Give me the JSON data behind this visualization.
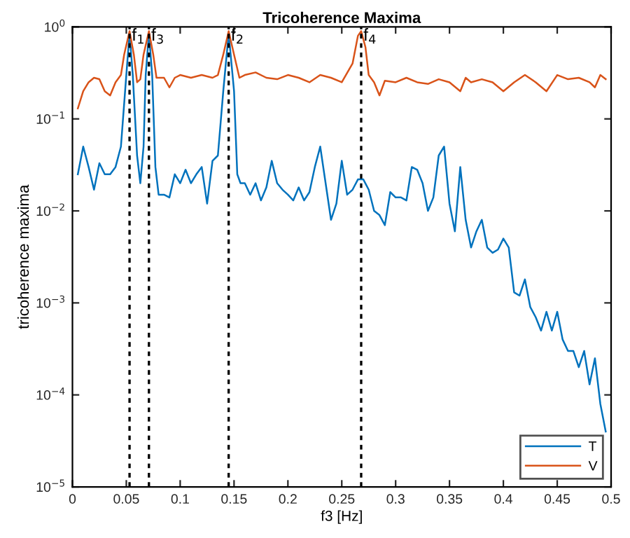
{
  "chart_data": {
    "type": "line",
    "title": "Tricoherence Maxima",
    "xlabel": "f3 [Hz]",
    "ylabel": "tricoherence maxima",
    "log": "y",
    "xlim": [
      0,
      0.5
    ],
    "xticks": [
      0,
      0.05,
      0.1,
      0.15,
      0.2,
      0.25,
      0.3,
      0.35,
      0.4,
      0.45,
      0.5
    ],
    "ylim": [
      1e-05,
      1
    ],
    "yticks": [
      {
        "value": 1e-05,
        "label": "10$^{−5}$"
      },
      {
        "value": 0.0001,
        "label": "10$^{−4}$"
      },
      {
        "value": 0.001,
        "label": "10$^{−3}$"
      },
      {
        "value": 0.01,
        "label": "10$^{−2}$"
      },
      {
        "value": 0.1,
        "label": "10$^{−1}$"
      },
      {
        "value": 1,
        "label": "10$^{0}$"
      }
    ],
    "grid": false,
    "legend": "bottom right",
    "line_style": "solid",
    "marker": "none",
    "series": [
      {
        "name": "T",
        "color": "#0072bd",
        "x": [
          0.005,
          0.01,
          0.015,
          0.02,
          0.025,
          0.03,
          0.035,
          0.04,
          0.045,
          0.05,
          0.053,
          0.056,
          0.06,
          0.063,
          0.066,
          0.068,
          0.071,
          0.074,
          0.077,
          0.08,
          0.085,
          0.09,
          0.095,
          0.1,
          0.105,
          0.11,
          0.115,
          0.12,
          0.125,
          0.13,
          0.135,
          0.14,
          0.145,
          0.15,
          0.153,
          0.156,
          0.16,
          0.165,
          0.17,
          0.175,
          0.18,
          0.185,
          0.19,
          0.195,
          0.2,
          0.205,
          0.21,
          0.215,
          0.22,
          0.225,
          0.23,
          0.235,
          0.24,
          0.245,
          0.25,
          0.255,
          0.26,
          0.265,
          0.27,
          0.275,
          0.28,
          0.285,
          0.29,
          0.295,
          0.3,
          0.305,
          0.31,
          0.315,
          0.32,
          0.325,
          0.33,
          0.335,
          0.34,
          0.345,
          0.35,
          0.355,
          0.36,
          0.365,
          0.37,
          0.375,
          0.38,
          0.385,
          0.39,
          0.395,
          0.4,
          0.405,
          0.41,
          0.415,
          0.42,
          0.425,
          0.43,
          0.435,
          0.44,
          0.445,
          0.45,
          0.455,
          0.46,
          0.465,
          0.47,
          0.475,
          0.48,
          0.485,
          0.49,
          0.495
        ],
        "values": [
          0.025,
          0.05,
          0.03,
          0.017,
          0.033,
          0.025,
          0.025,
          0.03,
          0.05,
          0.3,
          0.85,
          0.3,
          0.04,
          0.02,
          0.05,
          0.3,
          0.85,
          0.3,
          0.03,
          0.015,
          0.015,
          0.014,
          0.025,
          0.02,
          0.028,
          0.02,
          0.025,
          0.03,
          0.012,
          0.035,
          0.04,
          0.2,
          0.85,
          0.2,
          0.025,
          0.02,
          0.02,
          0.015,
          0.02,
          0.013,
          0.018,
          0.035,
          0.02,
          0.017,
          0.015,
          0.013,
          0.018,
          0.013,
          0.016,
          0.03,
          0.05,
          0.02,
          0.008,
          0.012,
          0.035,
          0.015,
          0.017,
          0.022,
          0.022,
          0.017,
          0.01,
          0.009,
          0.007,
          0.016,
          0.014,
          0.014,
          0.013,
          0.03,
          0.028,
          0.02,
          0.01,
          0.014,
          0.04,
          0.05,
          0.012,
          0.006,
          0.03,
          0.008,
          0.004,
          0.006,
          0.008,
          0.004,
          0.0035,
          0.0038,
          0.005,
          0.004,
          0.0013,
          0.0012,
          0.0018,
          0.0009,
          0.0007,
          0.0005,
          0.0008,
          0.0005,
          0.0008,
          0.0004,
          0.0003,
          0.0003,
          0.0002,
          0.0003,
          0.00013,
          0.00025,
          8e-05,
          4e-05
        ]
      },
      {
        "name": "V",
        "color": "#d95319",
        "x": [
          0.005,
          0.01,
          0.015,
          0.02,
          0.025,
          0.03,
          0.035,
          0.04,
          0.045,
          0.048,
          0.053,
          0.057,
          0.06,
          0.063,
          0.066,
          0.071,
          0.075,
          0.078,
          0.085,
          0.09,
          0.095,
          0.1,
          0.11,
          0.12,
          0.13,
          0.135,
          0.14,
          0.145,
          0.15,
          0.155,
          0.16,
          0.17,
          0.18,
          0.19,
          0.2,
          0.21,
          0.22,
          0.23,
          0.24,
          0.25,
          0.26,
          0.265,
          0.268,
          0.272,
          0.275,
          0.28,
          0.285,
          0.29,
          0.3,
          0.31,
          0.32,
          0.33,
          0.34,
          0.35,
          0.36,
          0.365,
          0.37,
          0.38,
          0.39,
          0.4,
          0.41,
          0.42,
          0.43,
          0.44,
          0.45,
          0.46,
          0.47,
          0.48,
          0.485,
          0.49,
          0.495
        ],
        "values": [
          0.13,
          0.2,
          0.25,
          0.28,
          0.27,
          0.2,
          0.18,
          0.25,
          0.3,
          0.5,
          0.9,
          0.5,
          0.25,
          0.27,
          0.5,
          0.9,
          0.5,
          0.28,
          0.28,
          0.22,
          0.28,
          0.3,
          0.28,
          0.3,
          0.28,
          0.3,
          0.5,
          0.9,
          0.5,
          0.28,
          0.3,
          0.32,
          0.28,
          0.27,
          0.3,
          0.28,
          0.25,
          0.3,
          0.28,
          0.25,
          0.4,
          0.8,
          0.9,
          0.6,
          0.3,
          0.25,
          0.18,
          0.26,
          0.25,
          0.28,
          0.25,
          0.24,
          0.27,
          0.25,
          0.2,
          0.28,
          0.25,
          0.27,
          0.25,
          0.2,
          0.25,
          0.3,
          0.25,
          0.2,
          0.3,
          0.27,
          0.28,
          0.25,
          0.22,
          0.3,
          0.27
        ]
      }
    ],
    "ref_lines": [
      {
        "axis": "x",
        "value": 0.053,
        "label": "f$_{1}$",
        "color": "#000000",
        "line_style": "dotted"
      },
      {
        "axis": "x",
        "value": 0.071,
        "label": "f$_{3}$",
        "color": "#000000",
        "line_style": "dotted"
      },
      {
        "axis": "x",
        "value": 0.145,
        "label": "f$_{2}$",
        "color": "#000000",
        "line_style": "dotted"
      },
      {
        "axis": "x",
        "value": 0.268,
        "label": "f$_{4}$",
        "color": "#000000",
        "line_style": "dotted"
      }
    ]
  }
}
